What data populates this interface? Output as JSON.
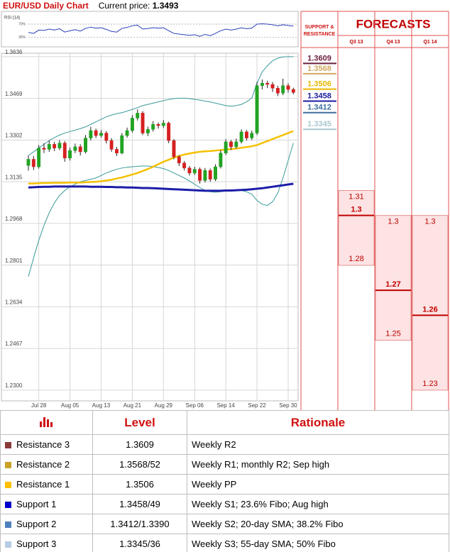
{
  "header": {
    "title": "EUR/USD Daily Chart",
    "price_label": "Current price:",
    "price": 1.3493
  },
  "chart_data": [
    {
      "type": "line",
      "title": "RSI (14)",
      "color": "#2b3fb8",
      "values": [
        45,
        42,
        52,
        51,
        55,
        52,
        56,
        46,
        50,
        53,
        49,
        57,
        61,
        58,
        59,
        54,
        48,
        46,
        57,
        60,
        65,
        67,
        55,
        57,
        59,
        58,
        59,
        50,
        42,
        40,
        38,
        36,
        38,
        33,
        39,
        35,
        42,
        50,
        55,
        52,
        55,
        59,
        56,
        58,
        70,
        71,
        70,
        68,
        65,
        68,
        66,
        64
      ],
      "ylim": [
        10,
        100
      ],
      "yticks": [
        {
          "value": 70,
          "label": "70%"
        },
        {
          "value": 30,
          "label": "30%"
        }
      ]
    },
    {
      "type": "candlestick",
      "categories": [
        null,
        null,
        "Jul 28",
        null,
        null,
        null,
        null,
        null,
        "Aug 05",
        null,
        null,
        null,
        null,
        null,
        "Aug 13",
        null,
        null,
        null,
        null,
        null,
        "Aug 21",
        null,
        null,
        null,
        null,
        null,
        "Aug 29",
        null,
        null,
        null,
        null,
        null,
        "Sep 06",
        null,
        null,
        null,
        null,
        null,
        "Sep 14",
        null,
        null,
        null,
        null,
        null,
        "Sep 22",
        null,
        null,
        null,
        null,
        null,
        "Sep 30",
        null
      ],
      "open": [
        1.32,
        1.3225,
        1.3195,
        1.327,
        1.3265,
        1.3285,
        1.327,
        1.329,
        1.323,
        1.326,
        1.3275,
        1.3255,
        1.331,
        1.334,
        1.332,
        1.333,
        1.33,
        1.3265,
        1.325,
        1.332,
        1.334,
        1.339,
        1.341,
        1.333,
        1.3345,
        1.3365,
        1.336,
        1.337,
        1.33,
        1.3235,
        1.321,
        1.319,
        1.317,
        1.3185,
        1.314,
        1.318,
        1.3145,
        1.3195,
        1.325,
        1.3295,
        1.3275,
        1.3295,
        1.3335,
        1.331,
        1.333,
        1.352,
        1.353,
        1.3525,
        1.351,
        1.349,
        1.352,
        1.3505
      ],
      "high": [
        1.324,
        1.3238,
        1.3282,
        1.329,
        1.33,
        1.3295,
        1.3302,
        1.3298,
        1.3272,
        1.3288,
        1.3285,
        1.3322,
        1.3355,
        1.3348,
        1.3342,
        1.3338,
        1.331,
        1.3275,
        1.333,
        1.3352,
        1.3402,
        1.3425,
        1.3418,
        1.3356,
        1.3378,
        1.3372,
        1.3382,
        1.3376,
        1.3306,
        1.3242,
        1.3218,
        1.3198,
        1.3195,
        1.3192,
        1.319,
        1.3188,
        1.3205,
        1.3262,
        1.3305,
        1.3302,
        1.3308,
        1.3345,
        1.3342,
        1.334,
        1.3535,
        1.3545,
        1.354,
        1.3535,
        1.352,
        1.3548,
        1.353,
        1.3512
      ],
      "low": [
        1.318,
        1.3182,
        1.3188,
        1.325,
        1.3255,
        1.3258,
        1.3262,
        1.3215,
        1.322,
        1.325,
        1.324,
        1.3248,
        1.33,
        1.331,
        1.3312,
        1.3288,
        1.3255,
        1.3238,
        1.3245,
        1.3312,
        1.3332,
        1.338,
        1.3322,
        1.3318,
        1.3336,
        1.3348,
        1.335,
        1.329,
        1.3225,
        1.3198,
        1.318,
        1.316,
        1.3162,
        1.3128,
        1.3132,
        1.3135,
        1.3138,
        1.3188,
        1.3242,
        1.3262,
        1.3268,
        1.3288,
        1.33,
        1.3302,
        1.3322,
        1.3505,
        1.351,
        1.3495,
        1.3478,
        1.3482,
        1.3492,
        1.3485
      ],
      "close": [
        1.3225,
        1.3195,
        1.327,
        1.3265,
        1.3285,
        1.327,
        1.329,
        1.323,
        1.326,
        1.3275,
        1.3255,
        1.331,
        1.334,
        1.332,
        1.333,
        1.33,
        1.3265,
        1.325,
        1.332,
        1.334,
        1.339,
        1.341,
        1.333,
        1.3345,
        1.3365,
        1.336,
        1.337,
        1.33,
        1.3235,
        1.321,
        1.319,
        1.317,
        1.3185,
        1.314,
        1.318,
        1.3145,
        1.3195,
        1.325,
        1.3295,
        1.3275,
        1.3295,
        1.3335,
        1.331,
        1.333,
        1.352,
        1.353,
        1.3525,
        1.351,
        1.349,
        1.352,
        1.3505,
        1.3493
      ],
      "up_color": "#22a322",
      "down_color": "#d62020",
      "series": [
        {
          "color": "#3a9a9a",
          "line_width": 1,
          "values": [
            1.324,
            1.3255,
            1.327,
            1.3285,
            1.33,
            1.3312,
            1.3322,
            1.333,
            1.3336,
            1.3342,
            1.3348,
            1.3355,
            1.3365,
            1.3375,
            1.3385,
            1.3395,
            1.3402,
            1.3408,
            1.3412,
            1.3418,
            1.3425,
            1.3432,
            1.344,
            1.3445,
            1.345,
            1.3455,
            1.346,
            1.3465,
            1.3468,
            1.347,
            1.347,
            1.3468,
            1.3465,
            1.3462,
            1.3458,
            1.3455,
            1.345,
            1.3445,
            1.344,
            1.3438,
            1.344,
            1.3445,
            1.3455,
            1.347,
            1.353,
            1.3575,
            1.36,
            1.362,
            1.363,
            1.3635,
            1.3636,
            1.3636
          ]
        },
        {
          "color": "#3a9a9a",
          "line_width": 1,
          "values": [
            1.2755,
            1.283,
            1.29,
            1.296,
            1.301,
            1.305,
            1.308,
            1.31,
            1.3115,
            1.3125,
            1.3135,
            1.314,
            1.3145,
            1.315,
            1.316,
            1.317,
            1.3178,
            1.3185,
            1.319,
            1.3193,
            1.3195,
            1.3197,
            1.3198,
            1.3198,
            1.3196,
            1.3192,
            1.3188,
            1.318,
            1.317,
            1.316,
            1.315,
            1.3138,
            1.3125,
            1.3112,
            1.31,
            1.3095,
            1.3093,
            1.3095,
            1.3098,
            1.31,
            1.3102,
            1.31,
            1.3095,
            1.3085,
            1.306,
            1.3045,
            1.304,
            1.3055,
            1.309,
            1.315,
            1.322,
            1.329
          ]
        },
        {
          "color": "#f5c000",
          "line_width": 2.5,
          "values": [
            1.3128,
            1.3128,
            1.3129,
            1.313,
            1.313,
            1.3131,
            1.3131,
            1.3131,
            1.3132,
            1.3132,
            1.3132,
            1.3133,
            1.3134,
            1.3135,
            1.3137,
            1.314,
            1.3143,
            1.3148,
            1.3152,
            1.3158,
            1.3164,
            1.317,
            1.3178,
            1.3186,
            1.3195,
            1.3205,
            1.3215,
            1.3223,
            1.3232,
            1.3238,
            1.3244,
            1.3248,
            1.3252,
            1.3255,
            1.3257,
            1.3258,
            1.326,
            1.3262,
            1.3264,
            1.3266,
            1.3268,
            1.3271,
            1.3274,
            1.3277,
            1.3282,
            1.329,
            1.3298,
            1.3306,
            1.3314,
            1.3322,
            1.333,
            1.3338
          ]
        },
        {
          "color": "#1c1ca8",
          "line_width": 3,
          "values": [
            1.3112,
            1.3113,
            1.3114,
            1.3115,
            1.3115,
            1.3116,
            1.3116,
            1.3116,
            1.3116,
            1.3116,
            1.3116,
            1.3116,
            1.3115,
            1.3115,
            1.3115,
            1.3114,
            1.3114,
            1.3113,
            1.3113,
            1.3112,
            1.3112,
            1.3111,
            1.311,
            1.311,
            1.3109,
            1.3108,
            1.3107,
            1.3106,
            1.3105,
            1.3104,
            1.3103,
            1.3102,
            1.3101,
            1.31,
            1.3099,
            1.3099,
            1.3099,
            1.3099,
            1.31,
            1.31,
            1.3101,
            1.3102,
            1.3103,
            1.3105,
            1.3107,
            1.3109,
            1.3112,
            1.3115,
            1.3118,
            1.3121,
            1.3124,
            1.3127
          ]
        }
      ],
      "ylim": [
        1.2257,
        1.365
      ],
      "yticks": [
        1.3636,
        1.3469,
        1.3302,
        1.3135,
        1.2968,
        1.2801,
        1.2634,
        1.2467,
        {
          "value": 1.23,
          "label": "1.2300"
        }
      ],
      "grid": true,
      "levels_title": "SUPPORT & RESISTANCE",
      "levels": [
        1.3609,
        1.3568,
        1.3506,
        1.3458,
        1.3412,
        1.3345
      ],
      "level_colors": [
        "#6b2040",
        "#d0a860",
        "#e8b800",
        "#1a1aa0",
        "#3e6f9e",
        "#a9c8d0"
      ]
    },
    {
      "type": "forecast",
      "title": "FORECASTS",
      "categories": [
        "Q3 13",
        "Q4 13",
        "Q1 14"
      ],
      "high": [
        1.31,
        1.3,
        1.3
      ],
      "central": [
        1.3,
        1.27,
        1.26
      ],
      "low": [
        1.28,
        1.25,
        1.23
      ],
      "color": "#c00000",
      "fill": "#fde3e3"
    }
  ],
  "table": {
    "columns": [
      "Level",
      "Rationale"
    ],
    "rows": [
      [
        "Resistance 3",
        "1.3609",
        "Weekly R2"
      ],
      [
        "Resistance 2",
        "1.3568/52",
        "Weekly R1; monthly R2; Sep high"
      ],
      [
        "Resistance 1",
        "1.3506",
        "Weekly PP"
      ],
      [
        "Support 1",
        "1.3458/49",
        "Weekly S1; 23.6% Fibo; Aug high"
      ],
      [
        "Support 2",
        "1.3412/1.3390",
        "Weekly S2; 20-day SMA; 38.2% Fibo"
      ],
      [
        "Support 3",
        "1.3345/36",
        "Weekly S3; 55-day SMA; 50% Fibo"
      ]
    ],
    "colors": [
      "#8b3a3a",
      "#c9a227",
      "#ffc000",
      "#0000cc",
      "#4f81bd",
      "#b8cce4"
    ]
  }
}
